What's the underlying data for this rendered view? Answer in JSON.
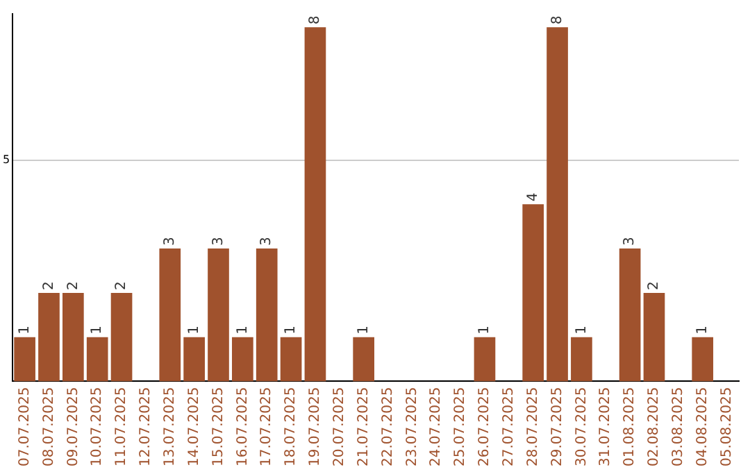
{
  "chart_data": {
    "type": "bar",
    "categories": [
      "07.07.2025",
      "08.07.2025",
      "09.07.2025",
      "10.07.2025",
      "11.07.2025",
      "12.07.2025",
      "13.07.2025",
      "14.07.2025",
      "15.07.2025",
      "16.07.2025",
      "17.07.2025",
      "18.07.2025",
      "19.07.2025",
      "20.07.2025",
      "21.07.2025",
      "22.07.2025",
      "23.07.2025",
      "24.07.2025",
      "25.07.2025",
      "26.07.2025",
      "27.07.2025",
      "28.07.2025",
      "29.07.2025",
      "30.07.2025",
      "31.07.2025",
      "01.08.2025",
      "02.08.2025",
      "03.08.2025",
      "04.08.2025",
      "05.08.2025"
    ],
    "values": [
      1,
      2,
      2,
      1,
      2,
      0,
      3,
      1,
      3,
      1,
      3,
      1,
      8,
      0,
      1,
      0,
      0,
      0,
      0,
      1,
      0,
      4,
      8,
      1,
      0,
      3,
      2,
      0,
      1,
      0
    ],
    "value_labels": [
      "1",
      "2",
      "2",
      "1",
      "2",
      null,
      "3",
      "1",
      "3",
      "1",
      "3",
      "1",
      "8",
      null,
      "1",
      null,
      null,
      null,
      null,
      "1",
      null,
      "4",
      "8",
      "1",
      null,
      "3",
      "2",
      null,
      "1",
      null
    ],
    "color": "#a0522d",
    "ylim": [
      0,
      8.3
    ],
    "yticks": [
      5
    ],
    "grid": "y"
  }
}
